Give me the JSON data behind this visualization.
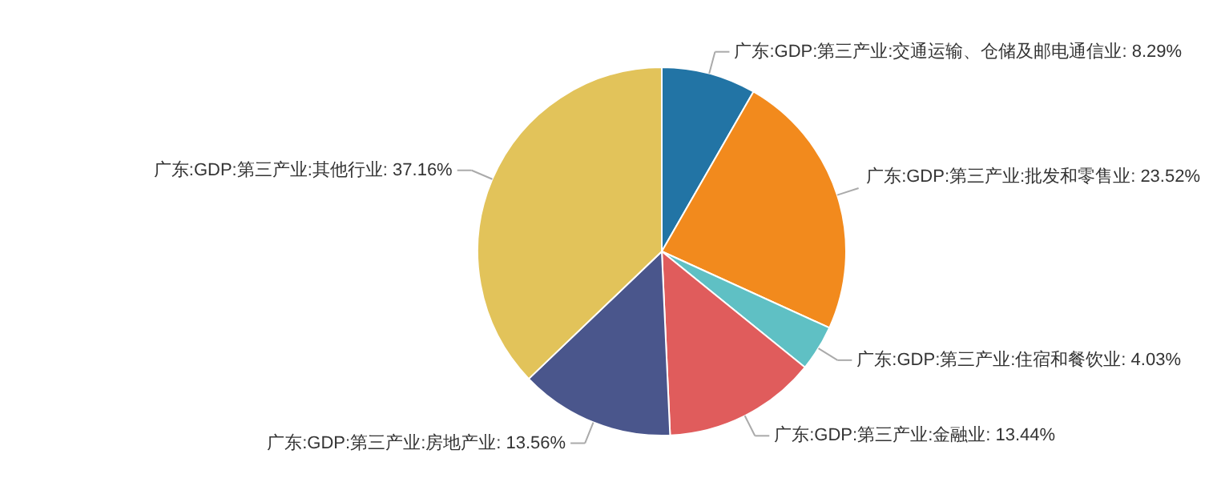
{
  "chart_data": {
    "type": "pie",
    "categories": [
      "广东:GDP:第三产业:交通运输、仓储及邮电通信业",
      "广东:GDP:第三产业:批发和零售业",
      "广东:GDP:第三产业:住宿和餐饮业",
      "广东:GDP:第三产业:金融业",
      "广东:GDP:第三产业:房地产业",
      "广东:GDP:第三产业:其他行业"
    ],
    "values": [
      8.29,
      23.52,
      4.03,
      13.44,
      13.56,
      37.16
    ],
    "value_labels": [
      "8.29%",
      "23.52%",
      "4.03%",
      "13.44%",
      "13.56%",
      "37.16%"
    ],
    "colors": [
      "#2274a5",
      "#f28a1d",
      "#5fc0c4",
      "#e05c5c",
      "#4a568c",
      "#e2c35a"
    ]
  }
}
